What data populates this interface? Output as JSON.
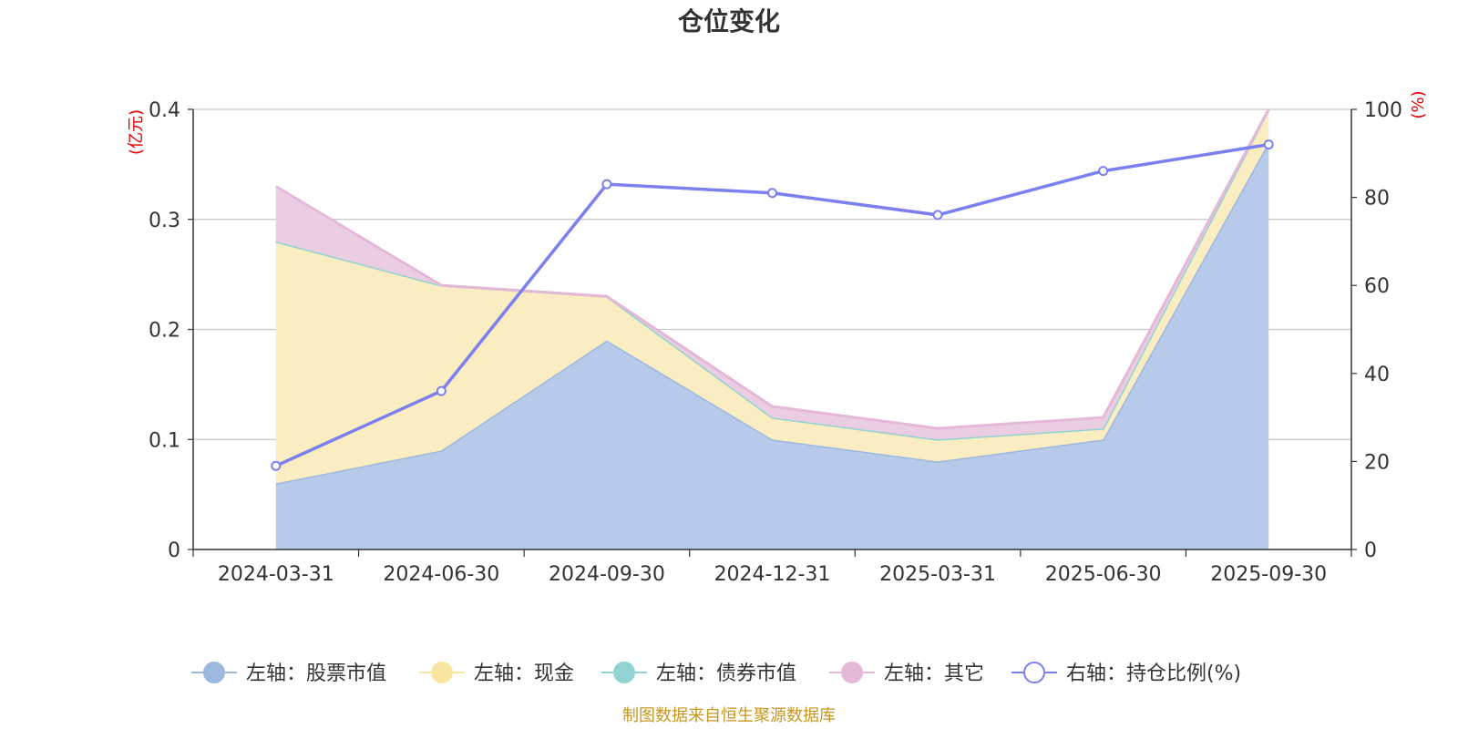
{
  "chart_data": {
    "type": "area",
    "title": "仓位变化",
    "categories": [
      "2024-03-31",
      "2024-06-30",
      "2024-09-30",
      "2024-12-31",
      "2025-03-31",
      "2025-06-30",
      "2025-09-30"
    ],
    "left_axis": {
      "unit": "(亿元)",
      "ylim": [
        0,
        0.4
      ],
      "ticks": [
        "0",
        "0.1",
        "0.2",
        "0.3",
        "0.4"
      ]
    },
    "right_axis": {
      "unit": "(%)",
      "ylim": [
        0,
        100
      ],
      "ticks": [
        "0",
        "20",
        "40",
        "60",
        "80",
        "100"
      ]
    },
    "series": [
      {
        "name": "左轴：股票市值",
        "axis": "left",
        "kind": "stacked-area",
        "color": "#9cb7e0",
        "fill": "#b7cae9",
        "values": [
          0.06,
          0.09,
          0.19,
          0.1,
          0.08,
          0.1,
          0.37
        ]
      },
      {
        "name": "左轴：现金",
        "axis": "left",
        "kind": "stacked-area",
        "color": "#f8e6a0",
        "fill": "#f9edc1",
        "values": [
          0.22,
          0.15,
          0.04,
          0.02,
          0.02,
          0.01,
          0.03
        ]
      },
      {
        "name": "左轴：债券市值",
        "axis": "left",
        "kind": "stacked-area",
        "color": "#8fd3d3",
        "fill": "#bfe6e6",
        "values": [
          0,
          0,
          0,
          0,
          0,
          0,
          0
        ]
      },
      {
        "name": "左轴：其它",
        "axis": "left",
        "kind": "stacked-area",
        "color": "#e6b8d8",
        "fill": "#ebcde3",
        "values": [
          0.05,
          0.0,
          0.0,
          0.01,
          0.01,
          0.01,
          0.0
        ]
      },
      {
        "name": "右轴：持仓比例(%)",
        "axis": "right",
        "kind": "line",
        "color": "#7b7ff0",
        "values": [
          19,
          36,
          83,
          81,
          76,
          86,
          92
        ]
      }
    ],
    "legend_position": "bottom"
  },
  "footer": {
    "source": "制图数据来自恒生聚源数据库"
  }
}
